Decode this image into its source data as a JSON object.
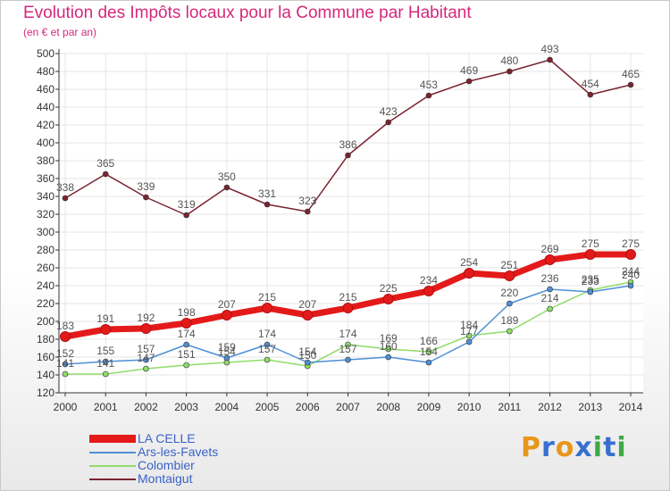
{
  "header": {
    "title": "Evolution des Impôts locaux pour la Commune par Habitant",
    "subtitle": "(en € et par an)"
  },
  "brand": {
    "letters": [
      "P",
      "r",
      "o",
      "x",
      "i",
      "t",
      "i"
    ],
    "colors": [
      "#e8961c",
      "#3a6fd0",
      "#e8961c",
      "#3a6fd0",
      "#3fa845",
      "#3a6fd0",
      "#3fa845"
    ]
  },
  "colors": {
    "title": "#d6287a",
    "axis": "#333333",
    "grid": "#e6e6e6",
    "legend_text": "#3a62c7",
    "data_label": "#555555"
  },
  "chart_data": {
    "type": "line",
    "title": "Evolution des Impôts locaux pour la Commune par Habitant",
    "subtitle": "(en € et par an)",
    "xlabel": "",
    "ylabel": "",
    "x": [
      "2000",
      "2001",
      "2002",
      "2003",
      "2004",
      "2005",
      "2006",
      "2007",
      "2008",
      "2009",
      "2010",
      "2011",
      "2012",
      "2013",
      "2014"
    ],
    "ylim": [
      120,
      500
    ],
    "yticks": [
      120,
      140,
      160,
      180,
      200,
      220,
      240,
      260,
      280,
      300,
      320,
      340,
      360,
      380,
      400,
      420,
      440,
      460,
      480,
      500
    ],
    "grid": true,
    "legend_position": "bottom-left",
    "series": [
      {
        "name": "LA CELLE",
        "color": "#e41a1a",
        "values": [
          183,
          191,
          192,
          198,
          207,
          215,
          207,
          215,
          225,
          234,
          254,
          251,
          269,
          275,
          275
        ],
        "labels": [
          "183",
          "191",
          "192",
          "198",
          "207",
          "215",
          "207",
          "215",
          "225",
          "234",
          "254",
          "251",
          "269",
          "275",
          "275"
        ]
      },
      {
        "name": "Ars-les-Favets",
        "color": "#4f8fd6",
        "values": [
          152,
          155,
          157,
          174,
          159,
          174,
          154,
          157,
          160,
          154,
          177,
          220,
          236,
          233,
          240
        ],
        "labels": [
          "152",
          "155",
          "157",
          "174",
          "159",
          "174",
          "154",
          "157",
          "160",
          "154",
          "177",
          "220",
          "236",
          "233",
          "240"
        ]
      },
      {
        "name": "Colombier",
        "color": "#8fdc6a",
        "values": [
          141,
          141,
          147,
          151,
          154,
          157,
          150,
          174,
          169,
          166,
          184,
          189,
          214,
          235,
          244
        ],
        "labels": [
          "141",
          "141",
          "147",
          "151",
          "154",
          "157",
          "150",
          "174",
          "169",
          "166",
          "184",
          "189",
          "214",
          "235",
          "244"
        ]
      },
      {
        "name": "Montaigut",
        "color": "#7a2430",
        "values": [
          338,
          365,
          339,
          319,
          350,
          331,
          323,
          386,
          423,
          453,
          469,
          480,
          493,
          454,
          465
        ],
        "labels": [
          "338",
          "365",
          "339",
          "319",
          "350",
          "331",
          "323",
          "386",
          "423",
          "453",
          "469",
          "480",
          "493",
          "454",
          "465"
        ]
      }
    ]
  }
}
